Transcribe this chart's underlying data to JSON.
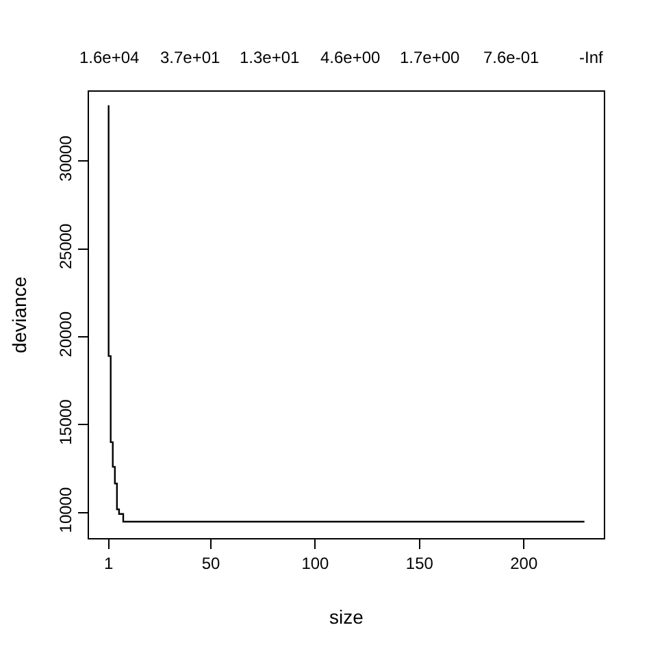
{
  "chart_data": {
    "type": "step",
    "xlabel": "size",
    "ylabel": "deviance",
    "x": [
      1,
      2,
      3,
      4,
      5,
      6,
      8,
      10,
      229
    ],
    "series": [
      {
        "color": "#000000",
        "values": [
          33170,
          18900,
          14000,
          12600,
          11650,
          10180,
          9920,
          9480,
          9480
        ]
      }
    ],
    "xlim": [
      -8.4,
      238.3
    ],
    "xticks": [
      1,
      50,
      100,
      150,
      200
    ],
    "ylim": [
      8544,
      33940
    ],
    "yticks": [
      10000,
      15000,
      20000,
      25000,
      30000
    ],
    "annotations": [
      "1.6e+04",
      "3.7e+01",
      "1.3e+01",
      "4.6e+00",
      "1.7e+00",
      "7.6e-01",
      "-Inf"
    ],
    "grid": false,
    "marker": "none",
    "line_style": "solid"
  }
}
